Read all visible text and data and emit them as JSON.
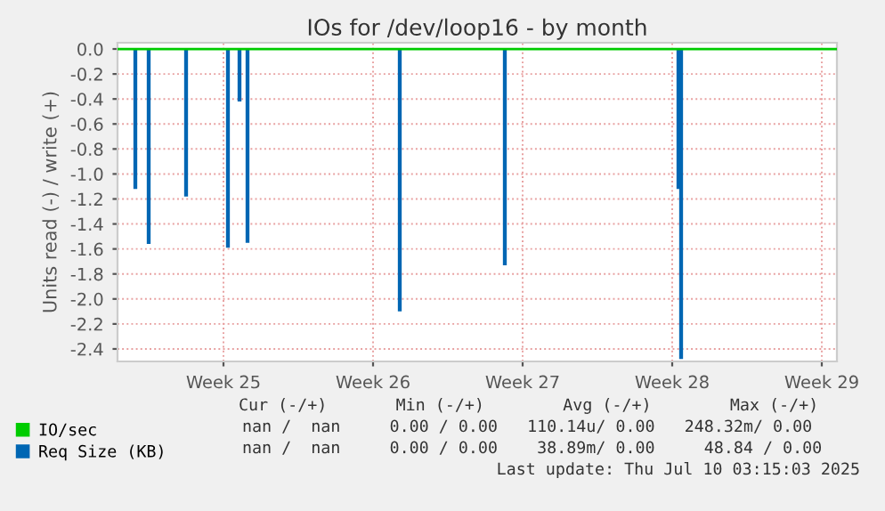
{
  "chart_data": {
    "type": "line",
    "title": "IOs for /dev/loop16 - by month",
    "ylabel": "Units read (-) / write (+)",
    "xlim": [
      "2025-06-11T01:00",
      "2025-07-14T17:00"
    ],
    "ylim": [
      -2.5,
      0.05
    ],
    "xticks": [
      {
        "value": "2025-06-16",
        "label": "Week 25"
      },
      {
        "value": "2025-06-23",
        "label": "Week 26"
      },
      {
        "value": "2025-06-30",
        "label": "Week 27"
      },
      {
        "value": "2025-07-07",
        "label": "Week 28"
      },
      {
        "value": "2025-07-14",
        "label": "Week 29"
      }
    ],
    "yticks": [
      {
        "value": 0,
        "label": "0.0"
      },
      {
        "value": -0.2,
        "label": "-0.2"
      },
      {
        "value": -0.4,
        "label": "-0.4"
      },
      {
        "value": -0.6,
        "label": "-0.6"
      },
      {
        "value": -0.8,
        "label": "-0.8"
      },
      {
        "value": -1.0,
        "label": "-1.0"
      },
      {
        "value": -1.2,
        "label": "-1.2"
      },
      {
        "value": -1.4,
        "label": "-1.4"
      },
      {
        "value": -1.6,
        "label": "-1.6"
      },
      {
        "value": -1.8,
        "label": "-1.8"
      },
      {
        "value": -2.0,
        "label": "-2.0"
      },
      {
        "value": -2.2,
        "label": "-2.2"
      },
      {
        "value": -2.4,
        "label": "-2.4"
      }
    ],
    "grid": true,
    "legend": "bottom left",
    "line_style": "solid",
    "marker": "none",
    "series": [
      {
        "name": "Req Size (KB)",
        "type": "bar",
        "color": "#0066b3",
        "x": [
          "2025-06-11T21:00",
          "2025-06-12T12:00",
          "2025-06-14T06:00",
          "2025-06-16T05:00",
          "2025-06-16T18:00",
          "2025-06-17T03:00",
          "2025-06-24T06:00",
          "2025-06-29T04:00",
          "2025-07-07T07:00",
          "2025-07-07T10:00"
        ],
        "values": [
          -1.12,
          -1.56,
          -1.18,
          -1.59,
          -0.42,
          -1.55,
          -2.1,
          -1.73,
          -1.12,
          -2.48
        ]
      },
      {
        "name": "IO/sec",
        "color": "#00cc00",
        "x": [
          "2025-06-11T01:00",
          "2025-07-14T17:00"
        ],
        "values": [
          0,
          0
        ]
      }
    ],
    "annotations": [
      "Cur (-/+)       Min (-/+)        Avg (-/+)        Max (-/+)",
      "nan /  nan     0.00 / 0.00   110.14u/ 0.00   248.32m/ 0.00",
      "nan /  nan     0.00 / 0.00    38.89m/ 0.00     48.84 / 0.00",
      "Last update: Thu Jul 10 03:15:03 2025"
    ]
  }
}
